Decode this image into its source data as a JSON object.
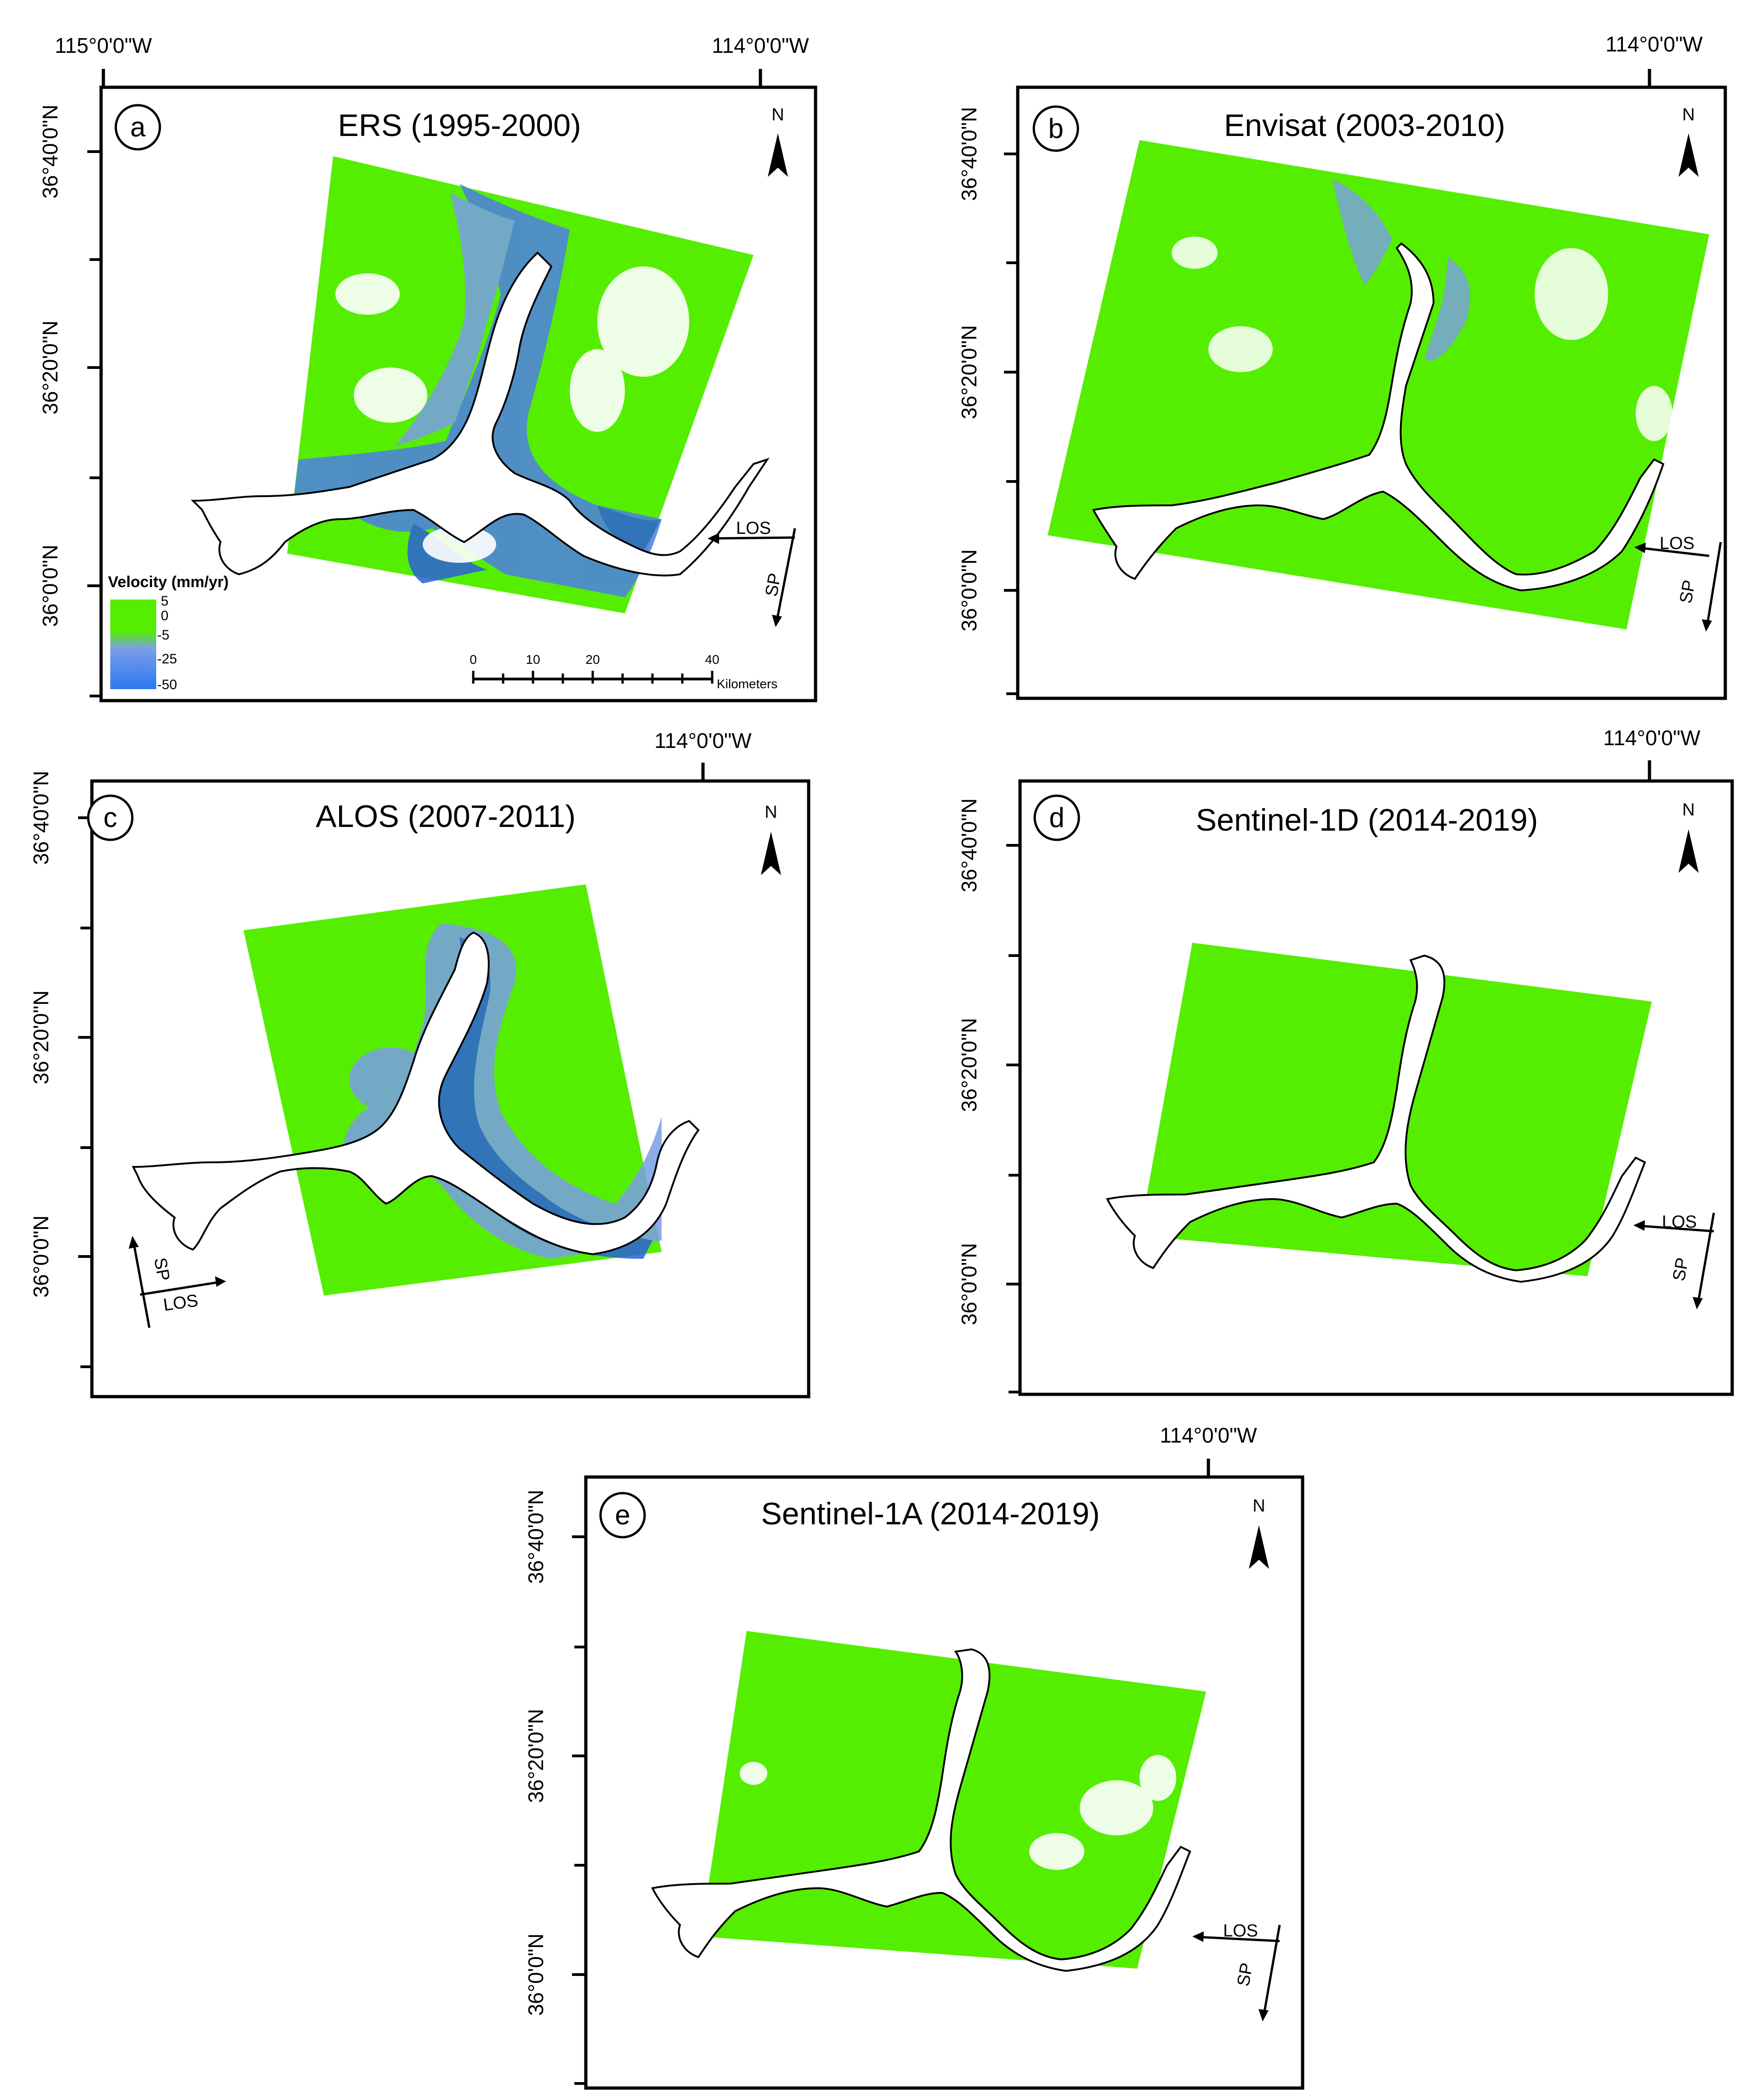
{
  "colors": {
    "green": "#55ee00",
    "blue_light": "#7a9ee8",
    "blue_mid": "#4f7ee6",
    "blue_dark": "#2b5fd9",
    "frame": "#000000",
    "background": "#ffffff"
  },
  "panels": [
    {
      "id": "a",
      "letter": "a",
      "title": "ERS (1995-2000)",
      "lon_labels": [
        "115°0'0\"W",
        "114°0'0\"W"
      ],
      "lat_labels": [
        "36°40'0\"N",
        "36°20'0\"N",
        "36°0'0\"N"
      ],
      "north": "N",
      "los": "LOS",
      "sp": "SP",
      "has_legend": true,
      "has_scalebar": true,
      "blue_intensity": "high"
    },
    {
      "id": "b",
      "letter": "b",
      "title": "Envisat (2003-2010)",
      "lon_labels": [
        "114°0'0\"W"
      ],
      "lat_labels": [
        "36°40'0\"N",
        "36°20'0\"N",
        "36°0'0\"N"
      ],
      "north": "N",
      "los": "LOS",
      "sp": "SP",
      "blue_intensity": "low"
    },
    {
      "id": "c",
      "letter": "c",
      "title": "ALOS (2007-2011)",
      "lon_labels": [
        "114°0'0\"W"
      ],
      "lat_labels": [
        "36°40'0\"N",
        "36°20'0\"N",
        "36°0'0\"N"
      ],
      "north": "N",
      "los": "LOS",
      "sp": "SP",
      "blue_intensity": "high"
    },
    {
      "id": "d",
      "letter": "d",
      "title": "Sentinel-1D (2014-2019)",
      "lon_labels": [
        "114°0'0\"W"
      ],
      "lat_labels": [
        "36°40'0\"N",
        "36°20'0\"N",
        "36°0'0\"N"
      ],
      "north": "N",
      "los": "LOS",
      "sp": "SP",
      "blue_intensity": "none"
    },
    {
      "id": "e",
      "letter": "e",
      "title": "Sentinel-1A (2014-2019)",
      "lon_labels": [
        "114°0'0\"W"
      ],
      "lat_labels": [
        "36°40'0\"N",
        "36°20'0\"N",
        "36°0'0\"N"
      ],
      "north": "N",
      "los": "LOS",
      "sp": "SP",
      "blue_intensity": "none"
    }
  ],
  "legend": {
    "title": "Velocity (mm/yr)",
    "ticks": [
      "5",
      "0",
      "-5",
      "-25",
      "-50"
    ]
  },
  "scalebar": {
    "ticks": [
      "0",
      "10",
      "20",
      "40"
    ],
    "unit": "Kilometers"
  }
}
